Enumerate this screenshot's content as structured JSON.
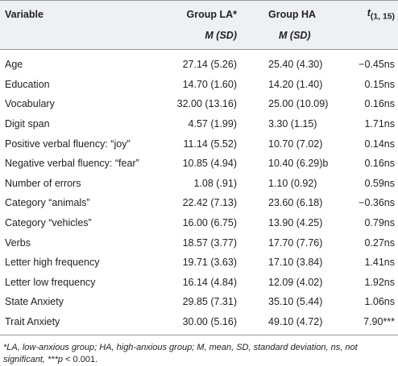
{
  "table": {
    "headers": [
      "Variable",
      "Group LA*",
      "Group HA"
    ],
    "t_header": {
      "symbol": "t",
      "sub": "(1, 15)"
    },
    "subheaders": [
      {
        "m": "M",
        "sd": "(SD)"
      },
      {
        "m": "M",
        "sd": "(SD)"
      }
    ],
    "rows": [
      [
        "Age",
        "27.14 (5.26)",
        "25.40 (4.30)",
        "−0.45ns"
      ],
      [
        "Education",
        "14.70 (1.60)",
        "14.20 (1.40)",
        "0.15ns"
      ],
      [
        "Vocabulary",
        "32.00 (13.16)",
        "25.00 (10.09)",
        "0.16ns"
      ],
      [
        "Digit span",
        "4.57 (1.99)",
        "3.30 (1.15)",
        "1.71ns"
      ],
      [
        "Positive verbal fluency: “joy”",
        "11.14 (5.52)",
        "10.70 (7.02)",
        "0.14ns"
      ],
      [
        "Negative verbal fluency: “fear”",
        "10.85 (4.94)",
        "10.40 (6.29)b",
        "0.16ns"
      ],
      [
        "Number of errors",
        "1.08 (.91)",
        "1.10 (0.92)",
        "0.59ns"
      ],
      [
        "Category “animals”",
        "22.42 (7.13)",
        "23.60 (6.18)",
        "−0.36ns"
      ],
      [
        "Category “vehicles”",
        "16.00 (6.75)",
        "13.90 (4.25)",
        "0.79ns"
      ],
      [
        "Verbs",
        "18.57 (3.77)",
        "17.70 (7.76)",
        "0.27ns"
      ],
      [
        "Letter high frequency",
        "19.71 (3.63)",
        "17.10 (3.84)",
        "1.41ns"
      ],
      [
        "Letter low frequency",
        "16.14 (4.84)",
        "12.09 (4.02)",
        "1.92ns"
      ],
      [
        "State Anxiety",
        "29.85 (7.31)",
        "35.10 (5.44)",
        "1.06ns"
      ],
      [
        "Trait Anxiety",
        "30.00 (5.16)",
        "49.10 (4.72)",
        "7.90***"
      ]
    ],
    "footnote": [
      "*LA, low-anxious group; HA, high-anxious group; M, mean, SD, standard deviation, ns, not significant, ",
      "***p",
      " < 0.001."
    ]
  }
}
